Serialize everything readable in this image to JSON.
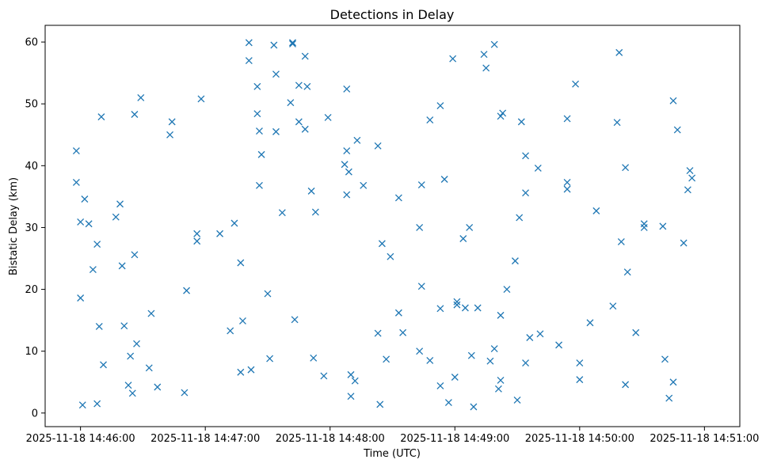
{
  "chart_data": {
    "type": "scatter",
    "title": "Detections in Delay",
    "xlabel": "Time (UTC)",
    "ylabel": "Bistatic Delay (km)",
    "marker": "x",
    "color": "#1f77b4",
    "grid": false,
    "x_unit": "minute",
    "xlim": [
      "2025-11-18 14:45:43",
      "2025-11-18 14:51:17"
    ],
    "ylim": [
      -2.2,
      62.7
    ],
    "x_ticks": [
      "2025-11-18 14:46:00",
      "2025-11-18 14:47:00",
      "2025-11-18 14:48:00",
      "2025-11-18 14:49:00",
      "2025-11-18 14:50:00",
      "2025-11-18 14:51:00"
    ],
    "y_ticks": [
      0,
      10,
      20,
      30,
      40,
      50,
      60
    ],
    "series": [
      {
        "points": [
          [
            "2025-11-18 14:45:58",
            42.4
          ],
          [
            "2025-11-18 14:45:58",
            37.3
          ],
          [
            "2025-11-18 14:46:00",
            30.9
          ],
          [
            "2025-11-18 14:46:00",
            18.6
          ],
          [
            "2025-11-18 14:46:01",
            1.3
          ],
          [
            "2025-11-18 14:46:02",
            34.6
          ],
          [
            "2025-11-18 14:46:04",
            30.6
          ],
          [
            "2025-11-18 14:46:06",
            23.2
          ],
          [
            "2025-11-18 14:46:08",
            27.3
          ],
          [
            "2025-11-18 14:46:08",
            1.5
          ],
          [
            "2025-11-18 14:46:09",
            14.0
          ],
          [
            "2025-11-18 14:46:10",
            47.9
          ],
          [
            "2025-11-18 14:46:11",
            7.8
          ],
          [
            "2025-11-18 14:46:17",
            31.7
          ],
          [
            "2025-11-18 14:46:19",
            33.8
          ],
          [
            "2025-11-18 14:46:20",
            23.8
          ],
          [
            "2025-11-18 14:46:21",
            14.1
          ],
          [
            "2025-11-18 14:46:23",
            4.5
          ],
          [
            "2025-11-18 14:46:24",
            9.2
          ],
          [
            "2025-11-18 14:46:25",
            3.2
          ],
          [
            "2025-11-18 14:46:26",
            25.6
          ],
          [
            "2025-11-18 14:46:26",
            48.3
          ],
          [
            "2025-11-18 14:46:27",
            11.2
          ],
          [
            "2025-11-18 14:46:29",
            51.0
          ],
          [
            "2025-11-18 14:46:33",
            7.3
          ],
          [
            "2025-11-18 14:46:34",
            16.1
          ],
          [
            "2025-11-18 14:46:37",
            4.2
          ],
          [
            "2025-11-18 14:46:43",
            45.0
          ],
          [
            "2025-11-18 14:46:44",
            47.1
          ],
          [
            "2025-11-18 14:46:50",
            3.3
          ],
          [
            "2025-11-18 14:46:51",
            19.8
          ],
          [
            "2025-11-18 14:46:56",
            27.8
          ],
          [
            "2025-11-18 14:46:56",
            29.0
          ],
          [
            "2025-11-18 14:46:58",
            50.8
          ],
          [
            "2025-11-18 14:47:07",
            29.0
          ],
          [
            "2025-11-18 14:47:12",
            13.3
          ],
          [
            "2025-11-18 14:47:14",
            30.7
          ],
          [
            "2025-11-18 14:47:17",
            24.3
          ],
          [
            "2025-11-18 14:47:17",
            6.6
          ],
          [
            "2025-11-18 14:47:18",
            14.9
          ],
          [
            "2025-11-18 14:47:21",
            57.0
          ],
          [
            "2025-11-18 14:47:21",
            59.9
          ],
          [
            "2025-11-18 14:47:22",
            7.0
          ],
          [
            "2025-11-18 14:47:25",
            48.4
          ],
          [
            "2025-11-18 14:47:25",
            52.8
          ],
          [
            "2025-11-18 14:47:26",
            45.6
          ],
          [
            "2025-11-18 14:47:26",
            36.8
          ],
          [
            "2025-11-18 14:47:27",
            41.8
          ],
          [
            "2025-11-18 14:47:30",
            19.3
          ],
          [
            "2025-11-18 14:47:31",
            8.8
          ],
          [
            "2025-11-18 14:47:33",
            59.5
          ],
          [
            "2025-11-18 14:47:34",
            54.8
          ],
          [
            "2025-11-18 14:47:34",
            45.5
          ],
          [
            "2025-11-18 14:47:37",
            32.4
          ],
          [
            "2025-11-18 14:47:41",
            50.2
          ],
          [
            "2025-11-18 14:47:42",
            59.7
          ],
          [
            "2025-11-18 14:47:42",
            59.9
          ],
          [
            "2025-11-18 14:47:43",
            15.1
          ],
          [
            "2025-11-18 14:47:45",
            47.1
          ],
          [
            "2025-11-18 14:47:45",
            53.0
          ],
          [
            "2025-11-18 14:47:48",
            57.7
          ],
          [
            "2025-11-18 14:47:48",
            45.9
          ],
          [
            "2025-11-18 14:47:49",
            52.8
          ],
          [
            "2025-11-18 14:47:51",
            35.9
          ],
          [
            "2025-11-18 14:47:52",
            8.9
          ],
          [
            "2025-11-18 14:47:53",
            32.5
          ],
          [
            "2025-11-18 14:47:57",
            6.0
          ],
          [
            "2025-11-18 14:47:59",
            47.8
          ],
          [
            "2025-11-18 14:48:07",
            40.2
          ],
          [
            "2025-11-18 14:48:08",
            35.3
          ],
          [
            "2025-11-18 14:48:08",
            42.4
          ],
          [
            "2025-11-18 14:48:08",
            52.4
          ],
          [
            "2025-11-18 14:48:09",
            39.0
          ],
          [
            "2025-11-18 14:48:10",
            6.2
          ],
          [
            "2025-11-18 14:48:10",
            2.7
          ],
          [
            "2025-11-18 14:48:12",
            5.2
          ],
          [
            "2025-11-18 14:48:13",
            44.1
          ],
          [
            "2025-11-18 14:48:16",
            36.8
          ],
          [
            "2025-11-18 14:48:23",
            43.2
          ],
          [
            "2025-11-18 14:48:23",
            12.9
          ],
          [
            "2025-11-18 14:48:24",
            1.4
          ],
          [
            "2025-11-18 14:48:25",
            27.4
          ],
          [
            "2025-11-18 14:48:27",
            8.7
          ],
          [
            "2025-11-18 14:48:29",
            25.3
          ],
          [
            "2025-11-18 14:48:33",
            34.8
          ],
          [
            "2025-11-18 14:48:33",
            16.2
          ],
          [
            "2025-11-18 14:48:35",
            13.0
          ],
          [
            "2025-11-18 14:48:43",
            30.0
          ],
          [
            "2025-11-18 14:48:43",
            10.0
          ],
          [
            "2025-11-18 14:48:44",
            36.9
          ],
          [
            "2025-11-18 14:48:44",
            20.5
          ],
          [
            "2025-11-18 14:48:48",
            47.4
          ],
          [
            "2025-11-18 14:48:48",
            8.5
          ],
          [
            "2025-11-18 14:48:53",
            49.7
          ],
          [
            "2025-11-18 14:48:53",
            16.9
          ],
          [
            "2025-11-18 14:48:53",
            4.4
          ],
          [
            "2025-11-18 14:48:55",
            37.8
          ],
          [
            "2025-11-18 14:48:57",
            1.7
          ],
          [
            "2025-11-18 14:48:59",
            57.3
          ],
          [
            "2025-11-18 14:49:00",
            5.8
          ],
          [
            "2025-11-18 14:49:01",
            18.0
          ],
          [
            "2025-11-18 14:49:01",
            17.5
          ],
          [
            "2025-11-18 14:49:04",
            28.2
          ],
          [
            "2025-11-18 14:49:05",
            17.0
          ],
          [
            "2025-11-18 14:49:07",
            30.0
          ],
          [
            "2025-11-18 14:49:08",
            9.3
          ],
          [
            "2025-11-18 14:49:09",
            1.0
          ],
          [
            "2025-11-18 14:49:11",
            17.0
          ],
          [
            "2025-11-18 14:49:14",
            58.0
          ],
          [
            "2025-11-18 14:49:15",
            55.8
          ],
          [
            "2025-11-18 14:49:17",
            8.4
          ],
          [
            "2025-11-18 14:49:19",
            59.6
          ],
          [
            "2025-11-18 14:49:19",
            10.4
          ],
          [
            "2025-11-18 14:49:21",
            3.9
          ],
          [
            "2025-11-18 14:49:22",
            15.8
          ],
          [
            "2025-11-18 14:49:22",
            5.3
          ],
          [
            "2025-11-18 14:49:22",
            48.0
          ],
          [
            "2025-11-18 14:49:23",
            48.5
          ],
          [
            "2025-11-18 14:49:25",
            20.0
          ],
          [
            "2025-11-18 14:49:29",
            24.6
          ],
          [
            "2025-11-18 14:49:30",
            2.1
          ],
          [
            "2025-11-18 14:49:31",
            31.6
          ],
          [
            "2025-11-18 14:49:32",
            47.1
          ],
          [
            "2025-11-18 14:49:34",
            41.6
          ],
          [
            "2025-11-18 14:49:34",
            35.6
          ],
          [
            "2025-11-18 14:49:34",
            8.1
          ],
          [
            "2025-11-18 14:49:36",
            12.2
          ],
          [
            "2025-11-18 14:49:40",
            39.6
          ],
          [
            "2025-11-18 14:49:41",
            12.8
          ],
          [
            "2025-11-18 14:49:50",
            11.0
          ],
          [
            "2025-11-18 14:49:54",
            47.6
          ],
          [
            "2025-11-18 14:49:54",
            37.3
          ],
          [
            "2025-11-18 14:49:54",
            36.2
          ],
          [
            "2025-11-18 14:49:58",
            53.2
          ],
          [
            "2025-11-18 14:50:00",
            8.1
          ],
          [
            "2025-11-18 14:50:00",
            5.4
          ],
          [
            "2025-11-18 14:50:05",
            14.6
          ],
          [
            "2025-11-18 14:50:08",
            32.7
          ],
          [
            "2025-11-18 14:50:16",
            17.3
          ],
          [
            "2025-11-18 14:50:18",
            47.0
          ],
          [
            "2025-11-18 14:50:19",
            58.3
          ],
          [
            "2025-11-18 14:50:20",
            27.7
          ],
          [
            "2025-11-18 14:50:22",
            39.7
          ],
          [
            "2025-11-18 14:50:22",
            4.6
          ],
          [
            "2025-11-18 14:50:23",
            22.8
          ],
          [
            "2025-11-18 14:50:27",
            13.0
          ],
          [
            "2025-11-18 14:50:31",
            30.0
          ],
          [
            "2025-11-18 14:50:31",
            30.6
          ],
          [
            "2025-11-18 14:50:40",
            30.2
          ],
          [
            "2025-11-18 14:50:41",
            8.7
          ],
          [
            "2025-11-18 14:50:43",
            2.4
          ],
          [
            "2025-11-18 14:50:45",
            50.5
          ],
          [
            "2025-11-18 14:50:45",
            5.0
          ],
          [
            "2025-11-18 14:50:47",
            45.8
          ],
          [
            "2025-11-18 14:50:50",
            27.5
          ],
          [
            "2025-11-18 14:50:52",
            36.1
          ],
          [
            "2025-11-18 14:50:53",
            39.2
          ],
          [
            "2025-11-18 14:50:54",
            38.0
          ]
        ]
      }
    ]
  }
}
